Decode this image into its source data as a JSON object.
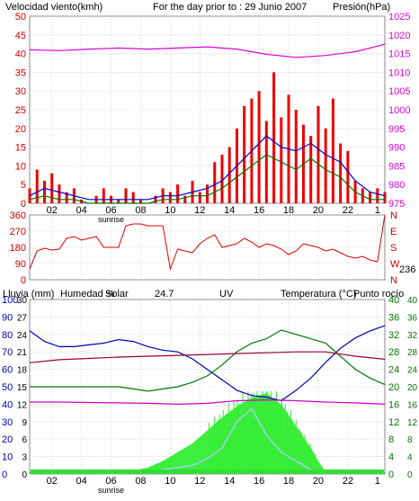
{
  "header": {
    "wind_speed_label": "Velocidad viento(kmh)",
    "day_label": "For the day prior to : 29 Junio 2007",
    "pressure_label": "Presión(hPa)"
  },
  "header2": {
    "rain_label": "Lluvia (mm)",
    "humidity_label": "Humedad %",
    "solar_label": "Solar",
    "solar_value": "24.7",
    "uv_label": "UV",
    "temperature_label": "Temperatura (°C)",
    "dewpoint_label": "Punto rocío"
  },
  "colors": {
    "wind_speed": "#ee0000",
    "wind_avg": "#0000cc",
    "wind_gust": "#007700",
    "pressure": "#dd00dd",
    "direction": "#dd0000",
    "humidity": "#0000bb",
    "temperature": "#007700",
    "dewpoint": "#990033",
    "humidity_mid": "#cc00cc",
    "rain": "#33dd33",
    "solar": "#33ee33",
    "uv": "#aaccff",
    "plot_bg": "#ffffff",
    "grid": "#bbbbbb"
  },
  "x_axis": {
    "ticks": [
      "02",
      "04",
      "06",
      "08",
      "10",
      "12",
      "14",
      "16",
      "18",
      "20",
      "22",
      "1"
    ],
    "sunrise_label": "sunrise"
  },
  "chart_data": [
    {
      "type": "line",
      "title": "Wind speed and pressure",
      "x": {
        "label": "hour",
        "range": [
          0,
          24
        ]
      },
      "y_left": {
        "label": "Velocidad viento(kmh)",
        "range": [
          0,
          50
        ],
        "ticks": [
          0,
          5,
          10,
          15,
          20,
          25,
          30,
          35,
          40,
          45,
          50
        ]
      },
      "y_right": {
        "label": "Presión(hPa)",
        "range": [
          975,
          1025
        ],
        "ticks": [
          975,
          980,
          985,
          990,
          995,
          1000,
          1005,
          1010,
          1015,
          1020,
          1025
        ]
      },
      "grid": true,
      "series": [
        {
          "name": "Velocidad viento",
          "axis": "left",
          "style": "bars",
          "x": [
            0,
            0.5,
            1,
            1.5,
            2,
            2.5,
            3,
            3.5,
            4,
            4.5,
            5,
            5.5,
            6,
            6.5,
            7,
            7.5,
            8,
            8.5,
            9,
            9.5,
            10,
            10.5,
            11,
            11.5,
            12,
            12.5,
            13,
            13.5,
            14,
            14.5,
            15,
            15.5,
            16,
            16.5,
            17,
            17.5,
            18,
            18.5,
            19,
            19.5,
            20,
            20.5,
            21,
            21.5,
            22,
            22.5,
            23,
            23.5,
            24
          ],
          "values": [
            4,
            9,
            6,
            8,
            5,
            3,
            4,
            1,
            0,
            2,
            4,
            2,
            1,
            4,
            3,
            1,
            0,
            2,
            4,
            3,
            5,
            2,
            6,
            3,
            5,
            11,
            13,
            15,
            20,
            26,
            28,
            30,
            22,
            35,
            23,
            29,
            25,
            21,
            18,
            26,
            20,
            28,
            16,
            14,
            6,
            4,
            3,
            4,
            3
          ]
        },
        {
          "name": "Promedio viento",
          "axis": "left",
          "style": "line",
          "x": [
            0,
            1,
            2,
            3,
            4,
            5,
            6,
            7,
            8,
            9,
            10,
            11,
            12,
            13,
            14,
            15,
            16,
            17,
            18,
            19,
            20,
            21,
            22,
            23,
            24
          ],
          "values": [
            2,
            4,
            3,
            2,
            1,
            1,
            1,
            1,
            1,
            2,
            2,
            3,
            4,
            6,
            10,
            14,
            18,
            15,
            14,
            16,
            13,
            11,
            6,
            3,
            2
          ]
        },
        {
          "name": "Racha",
          "axis": "left",
          "style": "line",
          "x": [
            0,
            1,
            2,
            3,
            4,
            5,
            6,
            7,
            8,
            9,
            10,
            11,
            12,
            13,
            14,
            15,
            16,
            17,
            18,
            19,
            20,
            21,
            22,
            23,
            24
          ],
          "values": [
            1,
            2,
            1,
            1,
            0,
            0,
            0,
            0,
            0,
            1,
            1,
            2,
            2,
            4,
            7,
            10,
            13,
            11,
            9,
            12,
            9,
            7,
            3,
            1,
            1
          ]
        },
        {
          "name": "Presión",
          "axis": "right",
          "style": "line",
          "x": [
            0,
            2,
            4,
            6,
            8,
            10,
            12,
            14,
            16,
            18,
            20,
            22,
            24
          ],
          "values": [
            1016,
            1015.8,
            1016.2,
            1016.5,
            1016.2,
            1016.5,
            1016.8,
            1016.2,
            1014.8,
            1014,
            1014.5,
            1015.5,
            1017.5
          ]
        }
      ]
    },
    {
      "type": "line",
      "title": "Wind direction",
      "x": {
        "label": "hour",
        "range": [
          0,
          24
        ]
      },
      "y_left": {
        "range": [
          0,
          360
        ],
        "ticks": [
          0,
          90,
          180,
          270,
          360
        ]
      },
      "y_right": {
        "ticks": [
          "N",
          "W",
          "S",
          "E",
          "N"
        ]
      },
      "current_value": "236",
      "series": [
        {
          "name": "Dirección",
          "x": [
            0,
            0.5,
            1,
            1.5,
            2,
            2.5,
            3,
            3.5,
            4,
            4.5,
            5,
            5.5,
            6,
            6.5,
            7,
            7.5,
            8,
            8.5,
            9,
            9.5,
            10,
            10.5,
            11,
            11.5,
            12,
            12.5,
            13,
            13.5,
            14,
            14.5,
            15,
            15.5,
            16,
            16.5,
            17,
            17.5,
            18,
            18.5,
            19,
            19.5,
            20,
            20.5,
            21,
            21.5,
            22,
            22.5,
            23,
            23.5,
            24
          ],
          "values": [
            60,
            160,
            175,
            165,
            170,
            230,
            240,
            220,
            230,
            240,
            180,
            180,
            180,
            300,
            310,
            310,
            300,
            300,
            300,
            60,
            170,
            160,
            150,
            200,
            230,
            250,
            180,
            190,
            200,
            230,
            210,
            180,
            200,
            190,
            170,
            140,
            160,
            200,
            190,
            180,
            160,
            170,
            150,
            130,
            120,
            130,
            110,
            100,
            360
          ]
        }
      ]
    },
    {
      "type": "line",
      "title": "Rain, humidity, solar, temperature",
      "x": {
        "label": "hour",
        "range": [
          0,
          24
        ]
      },
      "y_rain": {
        "label": "Lluvia (mm)",
        "ticks": [
          0,
          10,
          20,
          30,
          40,
          50,
          60,
          70,
          80,
          90,
          100
        ]
      },
      "y_humidity": {
        "label": "Humedad %",
        "range": [
          0,
          100
        ],
        "ticks": [
          0,
          6,
          12,
          18,
          24,
          30,
          36,
          42,
          48,
          54,
          60,
          66,
          72,
          78,
          84,
          90,
          96,
          100
        ]
      },
      "y_humidity_print": [
        0,
        3,
        6,
        9,
        12,
        15,
        18,
        21,
        24,
        27,
        30
      ],
      "y_temp_a": {
        "label": "Temperatura (°C)",
        "ticks": [
          0,
          2,
          4,
          6,
          8,
          10,
          12,
          14,
          16,
          18,
          20,
          22,
          24,
          26,
          28,
          30,
          32,
          34,
          36,
          38,
          40
        ]
      },
      "y_temp_b": {
        "ticks": [
          0,
          4,
          8,
          12,
          16,
          20,
          24,
          28,
          32,
          36,
          40
        ]
      },
      "grid": true,
      "series": [
        {
          "name": "Humedad",
          "axis": "humidity",
          "x": [
            0,
            1,
            2,
            3,
            4,
            5,
            6,
            7,
            8,
            9,
            10,
            11,
            12,
            13,
            14,
            15,
            16,
            17,
            18,
            19,
            20,
            21,
            22,
            23,
            24
          ],
          "values": [
            82,
            76,
            73,
            73,
            74,
            75,
            77,
            76,
            73,
            71,
            70,
            66,
            60,
            54,
            48,
            45,
            44,
            42,
            48,
            55,
            64,
            72,
            78,
            82,
            85
          ]
        },
        {
          "name": "Temperatura",
          "axis": "temp",
          "x": [
            0,
            1,
            2,
            3,
            4,
            5,
            6,
            7,
            8,
            9,
            10,
            11,
            12,
            13,
            14,
            15,
            16,
            17,
            18,
            19,
            20,
            21,
            22,
            23,
            24
          ],
          "values": [
            20,
            20,
            20,
            20,
            20,
            20,
            20,
            19.5,
            19,
            19.5,
            20,
            21,
            22.5,
            25,
            28,
            30,
            31,
            33,
            32,
            31,
            30,
            27,
            24,
            22,
            20.5
          ]
        },
        {
          "name": "Punto rocío",
          "axis": "temp",
          "x": [
            0,
            2,
            4,
            6,
            8,
            10,
            12,
            14,
            16,
            18,
            20,
            22,
            24
          ],
          "values": [
            25.5,
            26.2,
            26.5,
            26.8,
            27,
            27.2,
            27.4,
            27.6,
            27.8,
            28,
            28,
            27,
            26.3
          ]
        },
        {
          "name": "Humedad media",
          "axis": "temp",
          "x": [
            0,
            2,
            4,
            6,
            8,
            10,
            12,
            14,
            16,
            18,
            20,
            22,
            24
          ],
          "values": [
            16.5,
            16.5,
            16.4,
            16.3,
            16.2,
            16,
            16.2,
            16.8,
            17,
            16.8,
            16.5,
            16.3,
            16
          ]
        },
        {
          "name": "Solar",
          "axis": "temp",
          "style": "area",
          "x": [
            0,
            5,
            6,
            7,
            8,
            9,
            10,
            11,
            12,
            13,
            14,
            15,
            16,
            17,
            18,
            19,
            19.5,
            20,
            24
          ],
          "values": [
            0.5,
            0.5,
            0.5,
            0.8,
            1.5,
            3,
            5,
            7,
            10,
            13,
            15.5,
            17.5,
            18.5,
            16,
            11,
            6,
            3,
            0.5,
            0.5
          ]
        },
        {
          "name": "UV",
          "axis": "temp",
          "x": [
            5,
            7,
            9,
            11,
            12,
            13,
            14,
            15,
            16,
            17,
            18,
            19,
            19.5
          ],
          "values": [
            0,
            0.2,
            1,
            2,
            3.5,
            6,
            12,
            15,
            9,
            5,
            3,
            1,
            0
          ]
        }
      ]
    }
  ]
}
